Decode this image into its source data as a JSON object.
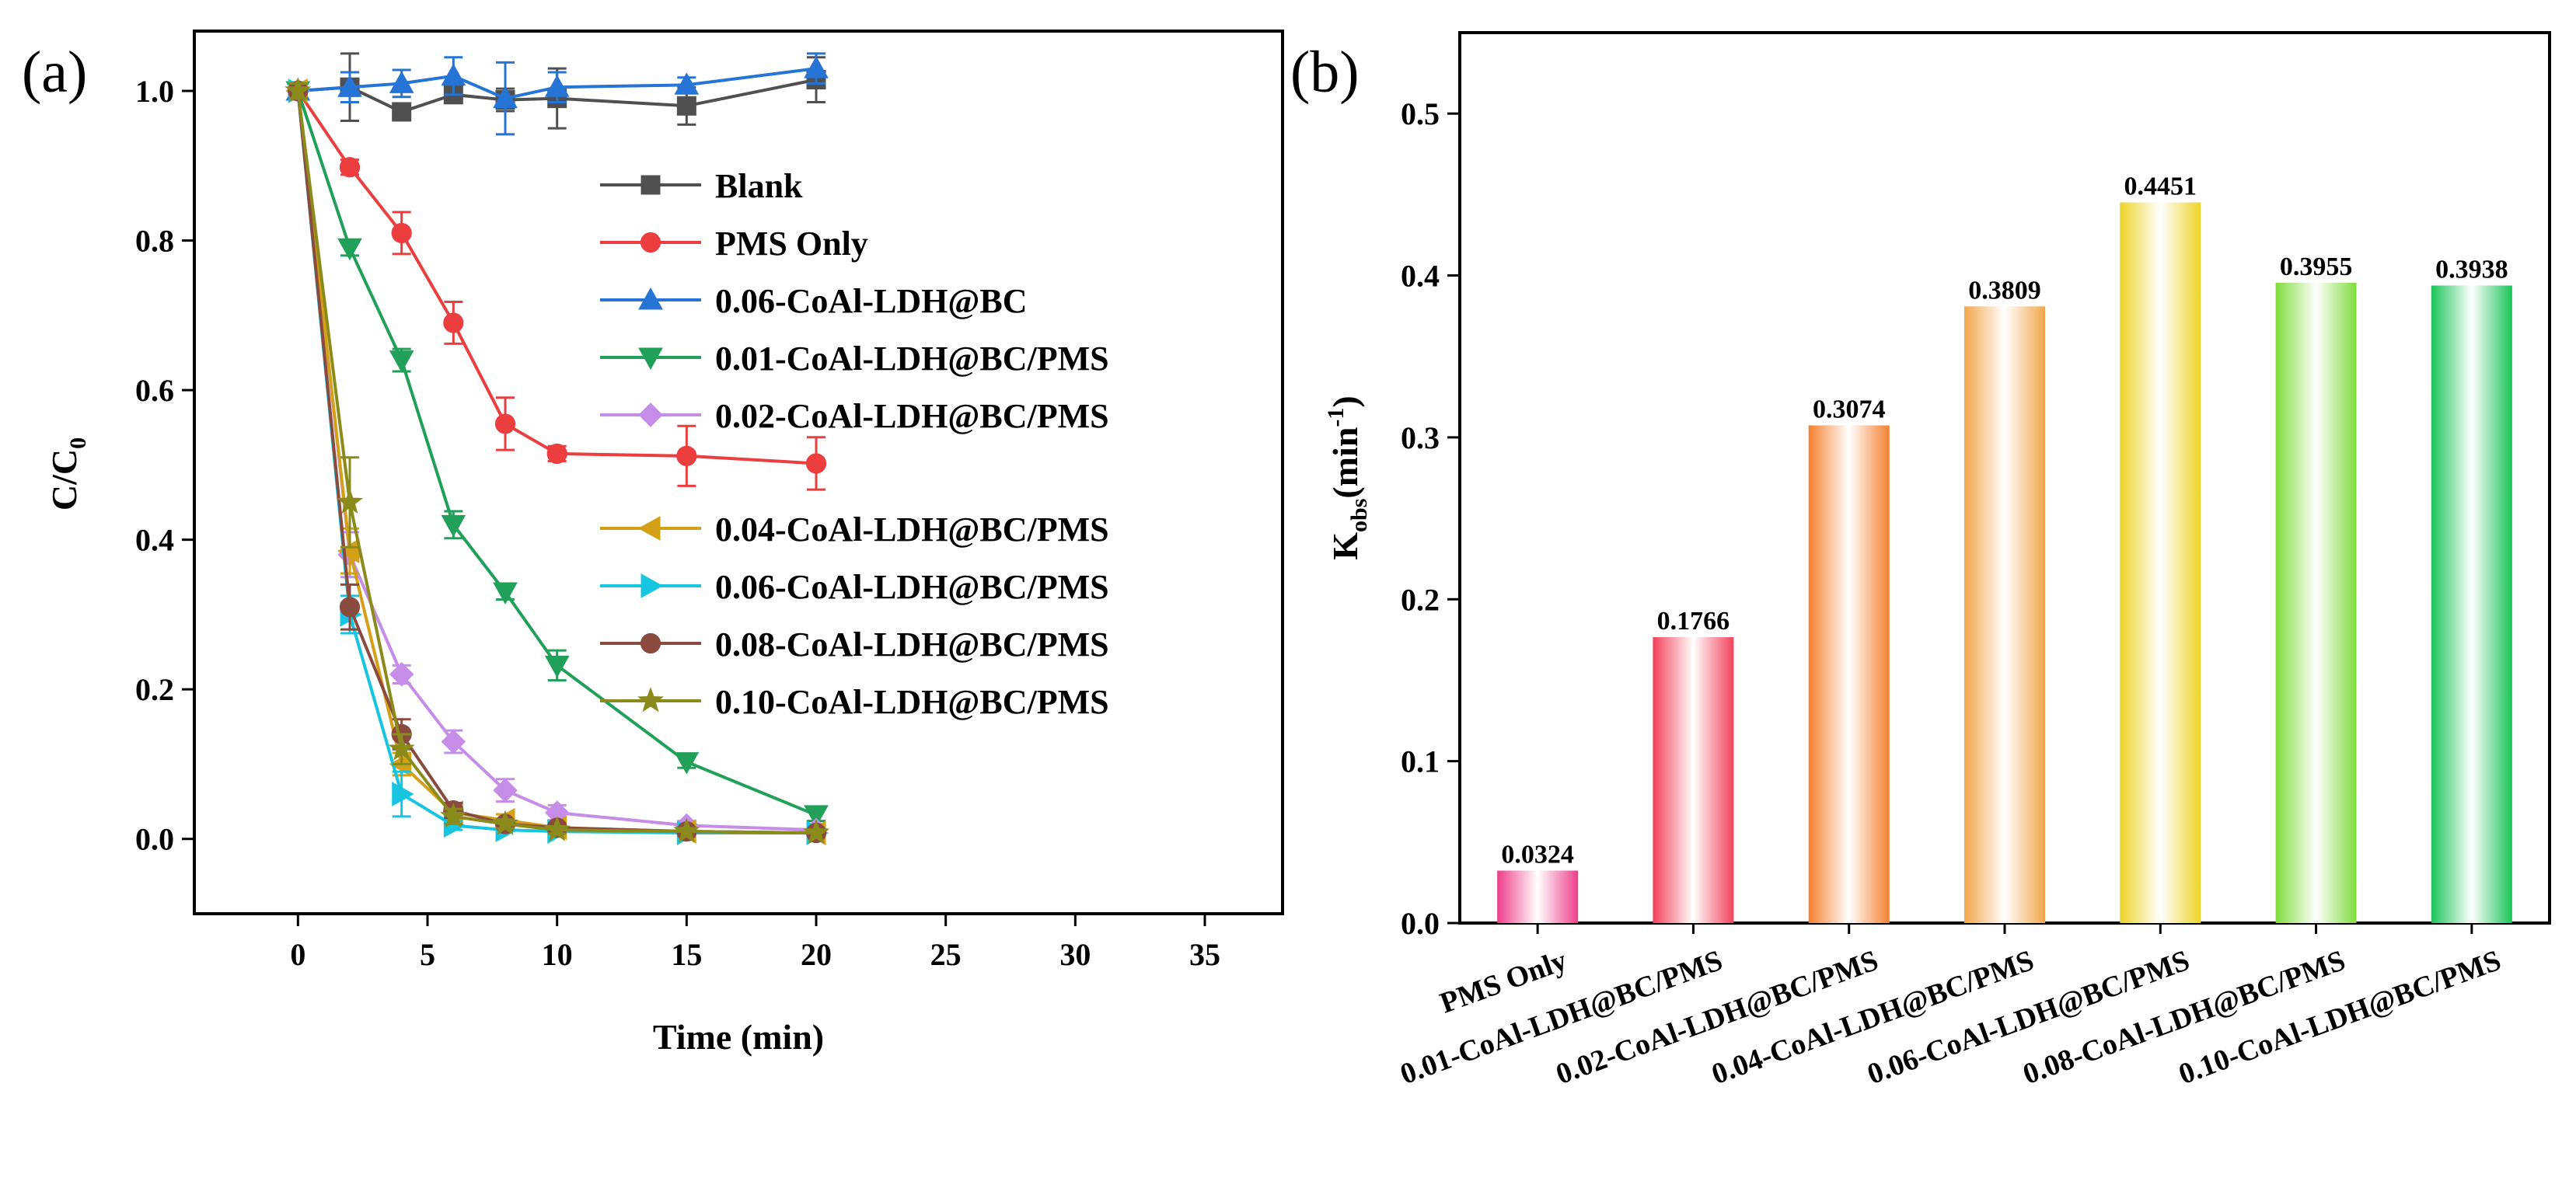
{
  "chart_data": [
    {
      "panel_label": "(a)",
      "type": "line",
      "xlabel": "Time (min)",
      "ylabel": {
        "main": "C/C",
        "sub": "0"
      },
      "xlim": [
        -4,
        38
      ],
      "ylim": [
        -0.1,
        1.08
      ],
      "x_ticks": [
        0,
        5,
        10,
        15,
        20,
        25,
        30,
        35
      ],
      "y_ticks": [
        0.0,
        0.2,
        0.4,
        0.6,
        0.8,
        1.0
      ],
      "legend_position": "top-right",
      "x": [
        0,
        2,
        4,
        6,
        8,
        10,
        15,
        20
      ],
      "series": [
        {
          "name": "Blank",
          "color": "#505050",
          "marker": "square",
          "values": [
            1.0,
            1.005,
            0.972,
            0.995,
            0.988,
            0.99,
            0.98,
            1.015
          ],
          "errors": [
            0.01,
            0.045,
            0.01,
            0.01,
            0.015,
            0.04,
            0.025,
            0.03
          ]
        },
        {
          "name": "PMS Only",
          "color": "#ec3e3e",
          "marker": "circle",
          "values": [
            1.0,
            0.898,
            0.81,
            0.69,
            0.555,
            0.515,
            0.512,
            0.502
          ],
          "errors": [
            0.01,
            0.01,
            0.028,
            0.028,
            0.035,
            0.01,
            0.04,
            0.035
          ]
        },
        {
          "name": "0.06-CoAl-LDH@BC",
          "color": "#2574d6",
          "marker": "triangle-up",
          "values": [
            1.0,
            1.005,
            1.01,
            1.02,
            0.99,
            1.005,
            1.008,
            1.03
          ],
          "errors": [
            0.01,
            0.02,
            0.018,
            0.025,
            0.048,
            0.02,
            0.01,
            0.02
          ]
        },
        {
          "name": "0.01-CoAl-LDH@BC/PMS",
          "color": "#21a05a",
          "marker": "triangle-down",
          "values": [
            1.0,
            0.79,
            0.64,
            0.42,
            0.33,
            0.232,
            0.103,
            0.032
          ],
          "errors": [
            0.01,
            0.01,
            0.015,
            0.018,
            0.01,
            0.02,
            0.008,
            0.008
          ]
        },
        {
          "name": "0.02-CoAl-LDH@BC/PMS",
          "color": "#c58ce8",
          "marker": "diamond",
          "values": [
            1.0,
            0.38,
            0.22,
            0.13,
            0.065,
            0.035,
            0.018,
            0.012
          ],
          "errors": [
            0.01,
            0.03,
            0.012,
            0.015,
            0.015,
            0.01,
            0.006,
            0.005
          ]
        },
        {
          "name": "0.04-CoAl-LDH@BC/PMS",
          "color": "#d4a017",
          "marker": "triangle-left",
          "values": [
            1.0,
            0.385,
            0.1,
            0.035,
            0.025,
            0.015,
            0.01,
            0.008
          ],
          "errors": [
            0.01,
            0.03,
            0.015,
            0.01,
            0.008,
            0.005,
            0.004,
            0.004
          ]
        },
        {
          "name": "0.06-CoAl-LDH@BC/PMS",
          "color": "#17c5e0",
          "marker": "triangle-right",
          "values": [
            1.0,
            0.3,
            0.06,
            0.018,
            0.012,
            0.01,
            0.008,
            0.008
          ],
          "errors": [
            0.01,
            0.025,
            0.03,
            0.006,
            0.004,
            0.004,
            0.003,
            0.003
          ]
        },
        {
          "name": "0.08-CoAl-LDH@BC/PMS",
          "color": "#8a4a3e",
          "marker": "circle",
          "values": [
            1.0,
            0.31,
            0.14,
            0.038,
            0.02,
            0.015,
            0.01,
            0.008
          ],
          "errors": [
            0.01,
            0.03,
            0.02,
            0.01,
            0.005,
            0.005,
            0.004,
            0.004
          ]
        },
        {
          "name": "0.10-CoAl-LDH@BC/PMS",
          "color": "#8b8b1c",
          "marker": "star",
          "values": [
            1.0,
            0.45,
            0.12,
            0.03,
            0.02,
            0.012,
            0.01,
            0.008
          ],
          "errors": [
            0.01,
            0.06,
            0.02,
            0.01,
            0.006,
            0.005,
            0.004,
            0.004
          ]
        }
      ]
    },
    {
      "panel_label": "(b)",
      "type": "bar",
      "xlabel": "",
      "ylabel": {
        "main": "K",
        "sub": "obs",
        "rest": "(min",
        "sup": "-1",
        "close": ")"
      },
      "ylim": [
        0,
        0.55
      ],
      "y_ticks": [
        0.0,
        0.1,
        0.2,
        0.3,
        0.4,
        0.5
      ],
      "categories": [
        "PMS Only",
        "0.01-CoAl-LDH@BC/PMS",
        "0.02-CoAl-LDH@BC/PMS",
        "0.04-CoAl-LDH@BC/PMS",
        "0.06-CoAl-LDH@BC/PMS",
        "0.08-CoAl-LDH@BC/PMS",
        "0.10-CoAl-LDH@BC/PMS"
      ],
      "values": [
        0.0324,
        0.1766,
        0.3074,
        0.3809,
        0.4451,
        0.3955,
        0.3938
      ],
      "data_labels": [
        "0.0324",
        "0.1766",
        "0.3074",
        "0.3809",
        "0.4451",
        "0.3955",
        "0.3938"
      ],
      "colors": [
        "#ef3d8a",
        "#f3405a",
        "#f5802f",
        "#f2a64a",
        "#ecd428",
        "#7fdc3c",
        "#1bc45a"
      ]
    }
  ]
}
